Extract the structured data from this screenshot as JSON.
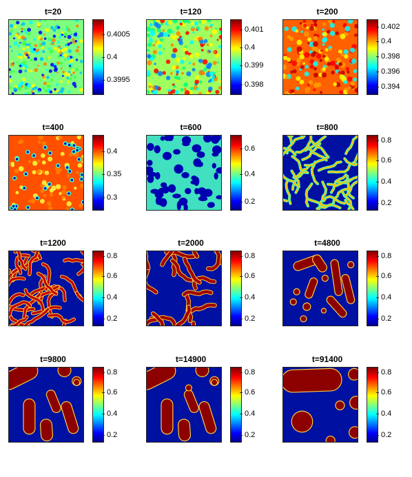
{
  "panels": [
    {
      "title": "t=20",
      "ticks": [
        "0.4005",
        "0.4",
        "0.3995"
      ],
      "tick_levels": [
        0.8,
        0.5,
        0.2
      ],
      "pattern": "noise-fine"
    },
    {
      "title": "t=120",
      "ticks": [
        "0.401",
        "0.4",
        "0.399",
        "0.398"
      ],
      "tick_levels": [
        0.86,
        0.63,
        0.39,
        0.14
      ],
      "pattern": "noise-medium"
    },
    {
      "title": "t=200",
      "ticks": [
        "0.402",
        "0.4",
        "0.398",
        "0.396",
        "0.394"
      ],
      "tick_levels": [
        0.9,
        0.71,
        0.51,
        0.31,
        0.11
      ],
      "pattern": "noise-red"
    },
    {
      "title": "t=400",
      "ticks": [
        "0.4",
        "0.35",
        "0.3"
      ],
      "tick_levels": [
        0.78,
        0.48,
        0.17
      ],
      "pattern": "spots-blue-on-red"
    },
    {
      "title": "t=600",
      "ticks": [
        "0.6",
        "0.4",
        "0.2"
      ],
      "tick_levels": [
        0.82,
        0.48,
        0.12
      ],
      "pattern": "cells"
    },
    {
      "title": "t=800",
      "ticks": [
        "0.8",
        "0.6",
        "0.4",
        "0.2"
      ],
      "tick_levels": [
        0.93,
        0.66,
        0.38,
        0.1
      ],
      "pattern": "labyrinth-thin"
    },
    {
      "title": "t=1200",
      "ticks": [
        "0.8",
        "0.6",
        "0.4",
        "0.2"
      ],
      "tick_levels": [
        0.93,
        0.66,
        0.38,
        0.1
      ],
      "pattern": "labyrinth"
    },
    {
      "title": "t=2000",
      "ticks": [
        "0.8",
        "0.6",
        "0.4",
        "0.2"
      ],
      "tick_levels": [
        0.93,
        0.66,
        0.38,
        0.1
      ],
      "pattern": "worms"
    },
    {
      "title": "t=4800",
      "ticks": [
        "0.8",
        "0.6",
        "0.4",
        "0.2"
      ],
      "tick_levels": [
        0.93,
        0.66,
        0.38,
        0.1
      ],
      "pattern": "blobs"
    },
    {
      "title": "t=9800",
      "ticks": [
        "0.8",
        "0.6",
        "0.4",
        "0.2"
      ],
      "tick_levels": [
        0.93,
        0.66,
        0.38,
        0.1
      ],
      "pattern": "blobs-large"
    },
    {
      "title": "t=14900",
      "ticks": [
        "0.8",
        "0.6",
        "0.4",
        "0.2"
      ],
      "tick_levels": [
        0.93,
        0.66,
        0.38,
        0.1
      ],
      "pattern": "blobs-large-2"
    },
    {
      "title": "t=91400",
      "ticks": [
        "0.8",
        "0.6",
        "0.4",
        "0.2"
      ],
      "tick_levels": [
        0.93,
        0.66,
        0.38,
        0.1
      ],
      "pattern": "coarsened"
    }
  ]
}
